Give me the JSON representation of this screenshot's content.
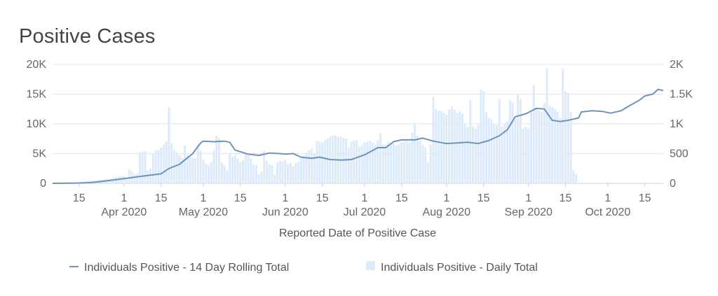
{
  "chart_data": {
    "type": "bar+line",
    "title": "Positive Cases",
    "xlabel": "Reported Date of Positive Case",
    "x_start": "2020-03-05",
    "x_end": "2020-10-22",
    "y_left": {
      "ticks": [
        "0",
        "5K",
        "10K",
        "15K",
        "20K"
      ],
      "range": [
        0,
        20000
      ]
    },
    "y_right": {
      "ticks": [
        "0",
        "500",
        "1K",
        "1.5K",
        "2K"
      ],
      "range": [
        0,
        2000
      ]
    },
    "x_ticks": [
      {
        "date": "2020-03-15",
        "label": "15"
      },
      {
        "date": "2020-04-01",
        "label": "1",
        "month": "Apr 2020"
      },
      {
        "date": "2020-04-15",
        "label": "15"
      },
      {
        "date": "2020-05-01",
        "label": "1",
        "month": "May 2020"
      },
      {
        "date": "2020-05-15",
        "label": "15"
      },
      {
        "date": "2020-06-01",
        "label": "1",
        "month": "Jun 2020"
      },
      {
        "date": "2020-06-15",
        "label": "15"
      },
      {
        "date": "2020-07-01",
        "label": "1",
        "month": "Jul 2020"
      },
      {
        "date": "2020-07-15",
        "label": "15"
      },
      {
        "date": "2020-08-01",
        "label": "1",
        "month": "Aug 2020"
      },
      {
        "date": "2020-08-15",
        "label": "15"
      },
      {
        "date": "2020-09-01",
        "label": "1",
        "month": "Sep 2020"
      },
      {
        "date": "2020-09-15",
        "label": "15"
      },
      {
        "date": "2020-10-01",
        "label": "1",
        "month": "Oct 2020"
      },
      {
        "date": "2020-10-15",
        "label": "15"
      }
    ],
    "series": [
      {
        "name": "Individuals Positive - 14 Day Rolling Total",
        "axis": "left",
        "kind": "line",
        "color": "#6e93bd",
        "points": [
          [
            "2020-03-05",
            0
          ],
          [
            "2020-03-15",
            50
          ],
          [
            "2020-03-20",
            150
          ],
          [
            "2020-03-25",
            400
          ],
          [
            "2020-04-01",
            800
          ],
          [
            "2020-04-08",
            1200
          ],
          [
            "2020-04-15",
            1600
          ],
          [
            "2020-04-18",
            2500
          ],
          [
            "2020-04-22",
            3200
          ],
          [
            "2020-04-27",
            5000
          ],
          [
            "2020-04-30",
            6800
          ],
          [
            "2020-05-01",
            7100
          ],
          [
            "2020-05-05",
            7000
          ],
          [
            "2020-05-09",
            7100
          ],
          [
            "2020-05-11",
            6900
          ],
          [
            "2020-05-13",
            5600
          ],
          [
            "2020-05-18",
            4900
          ],
          [
            "2020-05-22",
            4700
          ],
          [
            "2020-05-26",
            5100
          ],
          [
            "2020-05-30",
            5000
          ],
          [
            "2020-06-01",
            4900
          ],
          [
            "2020-06-04",
            5000
          ],
          [
            "2020-06-07",
            4400
          ],
          [
            "2020-06-11",
            4200
          ],
          [
            "2020-06-14",
            4400
          ],
          [
            "2020-06-18",
            4000
          ],
          [
            "2020-06-22",
            3900
          ],
          [
            "2020-06-26",
            4000
          ],
          [
            "2020-07-01",
            4800
          ],
          [
            "2020-07-04",
            5500
          ],
          [
            "2020-07-06",
            6000
          ],
          [
            "2020-07-09",
            6000
          ],
          [
            "2020-07-12",
            7000
          ],
          [
            "2020-07-15",
            7300
          ],
          [
            "2020-07-20",
            7300
          ],
          [
            "2020-07-23",
            7600
          ],
          [
            "2020-07-27",
            7100
          ],
          [
            "2020-08-01",
            6700
          ],
          [
            "2020-08-05",
            6800
          ],
          [
            "2020-08-09",
            6900
          ],
          [
            "2020-08-13",
            6700
          ],
          [
            "2020-08-17",
            7200
          ],
          [
            "2020-08-21",
            8000
          ],
          [
            "2020-08-24",
            9000
          ],
          [
            "2020-08-27",
            11200
          ],
          [
            "2020-08-31",
            11700
          ],
          [
            "2020-09-04",
            12600
          ],
          [
            "2020-09-07",
            12500
          ],
          [
            "2020-09-10",
            10600
          ],
          [
            "2020-09-13",
            10400
          ],
          [
            "2020-09-16",
            10600
          ],
          [
            "2020-09-20",
            11000
          ],
          [
            "2020-09-21",
            12000
          ],
          [
            "2020-09-25",
            12200
          ],
          [
            "2020-09-29",
            12100
          ],
          [
            "2020-10-02",
            11800
          ],
          [
            "2020-10-06",
            12200
          ],
          [
            "2020-10-09",
            13000
          ],
          [
            "2020-10-13",
            14000
          ],
          [
            "2020-10-15",
            14700
          ],
          [
            "2020-10-18",
            15000
          ],
          [
            "2020-10-20",
            15800
          ],
          [
            "2020-10-22",
            15600
          ]
        ]
      },
      {
        "name": "Individuals Positive - Daily Total",
        "axis": "right",
        "kind": "bar",
        "color": "#ddeaf9",
        "values": [
          5,
          6,
          8,
          10,
          12,
          14,
          15,
          18,
          20,
          22,
          24,
          28,
          30,
          35,
          40,
          45,
          50,
          55,
          60,
          65,
          70,
          75,
          80,
          90,
          100,
          110,
          120,
          130,
          100,
          240,
          200,
          150,
          160,
          520,
          530,
          540,
          220,
          250,
          510,
          550,
          560,
          600,
          650,
          700,
          1280,
          680,
          560,
          520,
          480,
          420,
          630,
          480,
          470,
          430,
          420,
          650,
          550,
          400,
          320,
          300,
          360,
          550,
          800,
          760,
          350,
          300,
          220,
          500,
          450,
          480,
          420,
          350,
          390,
          520,
          470,
          420,
          320,
          300,
          150,
          200,
          550,
          380,
          320,
          300,
          140,
          350,
          380,
          370,
          400,
          320,
          340,
          280,
          340,
          360,
          420,
          470,
          500,
          560,
          580,
          500,
          720,
          700,
          690,
          720,
          750,
          780,
          800,
          810,
          790,
          780,
          760,
          750,
          600,
          700,
          720,
          730,
          620,
          640,
          690,
          700,
          710,
          680,
          650,
          720,
          840,
          660,
          650,
          700,
          680,
          670,
          640,
          650,
          690,
          700,
          710,
          680,
          850,
          1020,
          800,
          720,
          650,
          600,
          350,
          650,
          1450,
          1250,
          1230,
          1220,
          1180,
          1150,
          1250,
          1300,
          1240,
          1180,
          1210,
          1170,
          1000,
          950,
          1400,
          960,
          920,
          980,
          1580,
          1550,
          1200,
          1100,
          1080,
          1000,
          980,
          1420,
          960,
          1000,
          1050,
          1400,
          1350,
          1080,
          1500,
          1420,
          920,
          950,
          920,
          1200,
          1650,
          1250,
          1230,
          1200,
          1350,
          1930,
          1300,
          1280,
          1250,
          1200,
          1100,
          1930,
          1550,
          1520,
          1200,
          220,
          150
        ]
      }
    ]
  }
}
